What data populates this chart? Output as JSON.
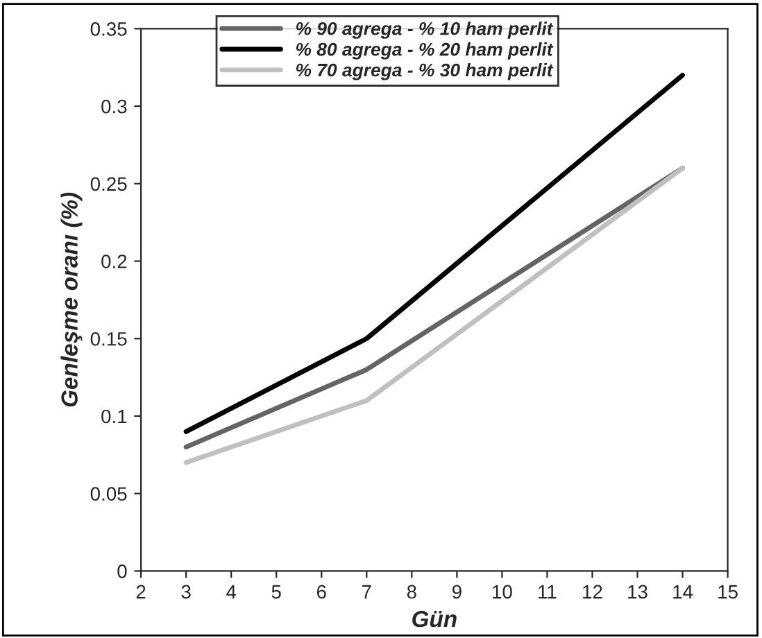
{
  "chart_data": {
    "type": "line",
    "xlabel": "Gün",
    "ylabel": "Genleşme oranı (%)",
    "x": [
      3,
      7,
      14
    ],
    "series": [
      {
        "name": "% 90 agrega - % 10 ham perlit",
        "color": "#646464",
        "values": [
          0.08,
          0.13,
          0.26
        ]
      },
      {
        "name": "% 80 agrega - % 20 ham perlit",
        "color": "#000000",
        "values": [
          0.09,
          0.15,
          0.32
        ]
      },
      {
        "name": "% 70 agrega - % 30 ham perlit",
        "color": "#c0c0c0",
        "values": [
          0.07,
          0.11,
          0.26
        ]
      }
    ],
    "xlim": [
      2,
      15
    ],
    "xticks": [
      2,
      3,
      4,
      5,
      6,
      7,
      8,
      9,
      10,
      11,
      12,
      13,
      14,
      15
    ],
    "ylim": [
      0,
      0.35
    ],
    "yticks": [
      0,
      0.05,
      0.1,
      0.15,
      0.2,
      0.25,
      0.3,
      0.35
    ],
    "grid": false,
    "legend": "top",
    "marker": "none",
    "line_style": "solid"
  }
}
